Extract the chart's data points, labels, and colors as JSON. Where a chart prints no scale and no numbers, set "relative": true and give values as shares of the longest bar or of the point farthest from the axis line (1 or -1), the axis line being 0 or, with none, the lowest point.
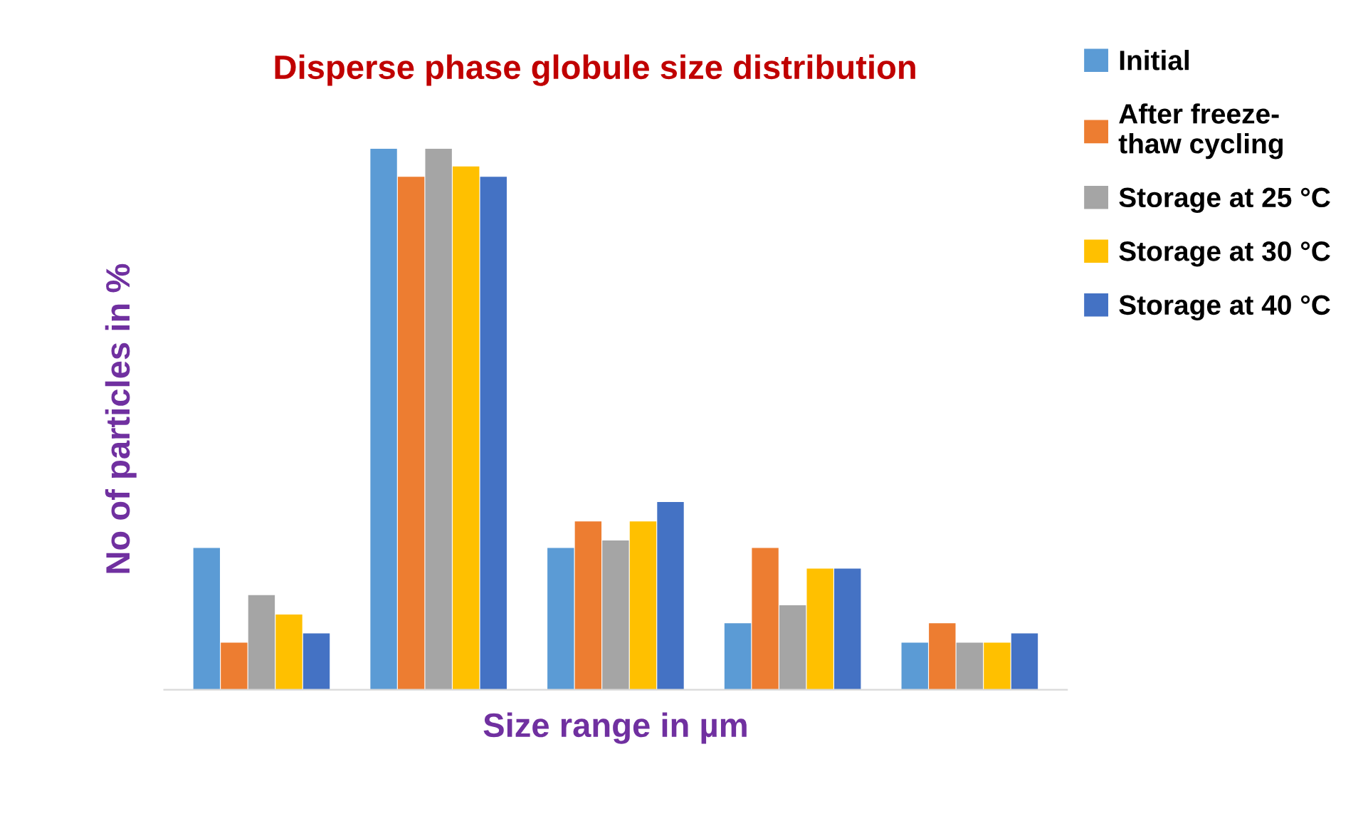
{
  "chart_data": {
    "type": "bar",
    "title": "Disperse phase globule size distribution",
    "xlabel": "Size range in µm",
    "ylabel": "No of particles in %",
    "relative": true,
    "categories": [
      null,
      null,
      null,
      null,
      null
    ],
    "series": [
      {
        "name": "Initial",
        "color": "#5b9bd5",
        "values": [
          0.262,
          1,
          0.262,
          0.123,
          0.087
        ]
      },
      {
        "name": "After freeze-\nthaw cycling",
        "color": "#ed7d31",
        "values": [
          0.087,
          0.948,
          0.311,
          0.262,
          0.123
        ]
      },
      {
        "name": "Storage at 25 °C",
        "color": "#a5a5a5",
        "values": [
          0.175,
          1,
          0.276,
          0.156,
          0.087
        ]
      },
      {
        "name": "Storage at 30 °C",
        "color": "#ffc000",
        "values": [
          0.139,
          0.967,
          0.311,
          0.224,
          0.087
        ]
      },
      {
        "name": "Storage at 40 °C",
        "color": "#4472c4",
        "values": [
          0.104,
          0.948,
          0.347,
          0.224,
          0.104
        ]
      }
    ],
    "legend": "right",
    "grid": false
  }
}
